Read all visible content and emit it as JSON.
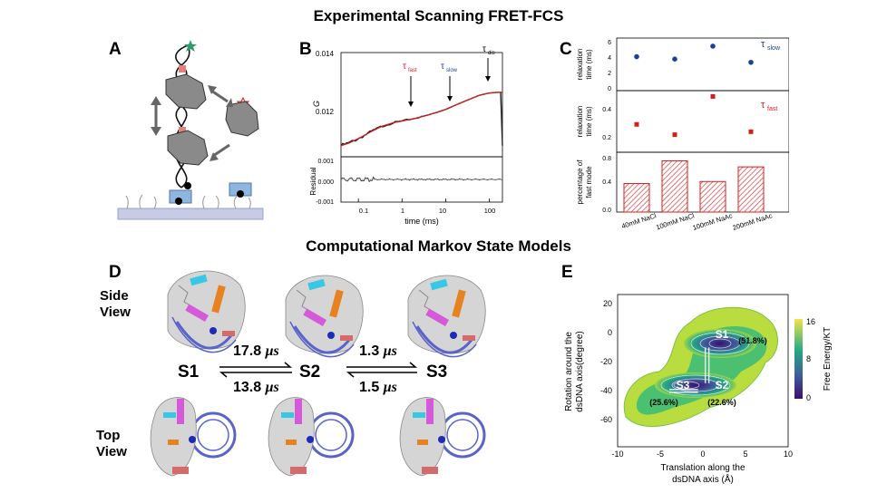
{
  "titles": {
    "top": "Experimental Scanning FRET-FCS",
    "bottom": "Computational Markov State Models"
  },
  "panels": {
    "A": "A",
    "B": "B",
    "C": "C",
    "D": "D",
    "E": "E"
  },
  "colors": {
    "red": "#d91c1c",
    "blue": "#1d3f96",
    "helix_magenta": "#d45ad9",
    "helix_cyan": "#38c8e6",
    "helix_orange": "#e8821e",
    "dna_blue": "#5a63c9",
    "protein_gray": "#a9a9a9"
  },
  "panel_b": {
    "ylabel_top": "G",
    "ylabel_bottom": "Residual",
    "xlabel": "time (ms)",
    "yticks_top": [
      "0.014",
      "0.012"
    ],
    "yticks_bottom": [
      "0.001",
      "0.000",
      "-0.001"
    ],
    "xticks": [
      "0.1",
      "1",
      "10",
      "100"
    ],
    "annotations": [
      {
        "sym": "τ",
        "sub": "fast",
        "color": "#d91c1c"
      },
      {
        "sym": "τ",
        "sub": "slow",
        "color": "#1d3f96"
      },
      {
        "sym": "τ",
        "sub": "dis",
        "color": "#000000"
      }
    ]
  },
  "panel_c": {
    "ylabel_top": [
      "relaxation",
      "time (ms)"
    ],
    "ylabel_mid": [
      "relaxation",
      "time (ms)"
    ],
    "ylabel_bottom": [
      "percentage of",
      "fast mode"
    ],
    "legend_slow": {
      "sym": "τ",
      "sub": "slow"
    },
    "legend_fast": {
      "sym": "τ",
      "sub": "fast"
    },
    "yticks_top": [
      "6",
      "4",
      "2",
      "0"
    ],
    "yticks_mid": [
      "0.4",
      "0.2"
    ],
    "yticks_bottom": [
      "0.8",
      "0.4",
      "0.0"
    ],
    "categories": [
      "40mM NaCl",
      "100mM NaCl",
      "100mM NaAc",
      "200mM NaAc"
    ]
  },
  "panel_d": {
    "side_view": [
      "Side",
      "View"
    ],
    "top_view": [
      "Top",
      "View"
    ],
    "states": [
      "S1",
      "S2",
      "S3"
    ],
    "rate_12": "17.8",
    "rate_21": "13.8",
    "rate_23": "1.3",
    "rate_32": "1.5",
    "rate_unit": "μs"
  },
  "panel_e": {
    "ylabel": [
      "Rotation around the",
      "dsDNA axis(degree)"
    ],
    "xlabel": [
      "Translation along the",
      "dsDNA axis (Å)"
    ],
    "colorbar_label": "Free Energy/KT",
    "colorbar_ticks": [
      "16",
      "8",
      "0"
    ],
    "xticks": [
      "-10",
      "-5",
      "0",
      "5",
      "10"
    ],
    "yticks": [
      "20",
      "0",
      "-20",
      "-40",
      "-60"
    ],
    "states": [
      {
        "name": "S1",
        "pct": "(51.8%)"
      },
      {
        "name": "S2",
        "pct": "(22.6%)"
      },
      {
        "name": "S3",
        "pct": "(25.6%)"
      }
    ]
  },
  "chart_data": [
    {
      "type": "line",
      "panel": "B",
      "xscale": "log",
      "xlim": [
        0.04,
        200
      ],
      "ylim": [
        0.0109,
        0.0142
      ],
      "x": [
        0.04,
        0.06,
        0.1,
        0.2,
        0.35,
        0.6,
        1,
        2,
        3.5,
        6,
        10,
        20,
        35,
        60,
        100,
        150,
        200
      ],
      "y": [
        0.01125,
        0.01133,
        0.01148,
        0.0117,
        0.01187,
        0.01197,
        0.01203,
        0.01212,
        0.0122,
        0.0123,
        0.0124,
        0.01258,
        0.01272,
        0.01285,
        0.01292,
        0.01294,
        0.01294
      ]
    },
    {
      "type": "scatter",
      "panel": "C-top",
      "ylabel": "relaxation time (ms)",
      "categories": [
        "40mM NaCl",
        "100mM NaCl",
        "100mM NaAc",
        "200mM NaAc"
      ],
      "series": [
        {
          "name": "τslow",
          "values": [
            4.2,
            3.9,
            5.5,
            3.5
          ]
        }
      ],
      "ylim": [
        0,
        6.5
      ]
    },
    {
      "type": "scatter",
      "panel": "C-mid",
      "ylabel": "relaxation time (ms)",
      "categories": [
        "40mM NaCl",
        "100mM NaCl",
        "100mM NaAc",
        "200mM NaAc"
      ],
      "series": [
        {
          "name": "τfast",
          "values": [
            0.29,
            0.22,
            0.48,
            0.24
          ]
        }
      ],
      "ylim": [
        0.1,
        0.52
      ]
    },
    {
      "type": "bar",
      "panel": "C-bottom",
      "ylabel": "percentage of fast mode",
      "categories": [
        "40mM NaCl",
        "100mM NaCl",
        "100mM NaAc",
        "200mM NaAc"
      ],
      "values": [
        0.43,
        0.77,
        0.46,
        0.68
      ],
      "ylim": [
        0,
        0.9
      ]
    },
    {
      "type": "heatmap",
      "panel": "E",
      "xlabel": "Translation along the dsDNA axis (Å)",
      "ylabel": "Rotation around the dsDNA axis(degree)",
      "xlim": [
        -10,
        10
      ],
      "ylim": [
        -70,
        30
      ],
      "colorbar": {
        "label": "Free Energy/KT",
        "range": [
          0,
          16
        ]
      },
      "states": [
        {
          "name": "S1",
          "x": 0.5,
          "y": 0,
          "population": 51.8
        },
        {
          "name": "S2",
          "x": 0.5,
          "y": -33,
          "population": 22.6
        },
        {
          "name": "S3",
          "x": -5,
          "y": -33,
          "population": 25.6
        }
      ]
    }
  ]
}
